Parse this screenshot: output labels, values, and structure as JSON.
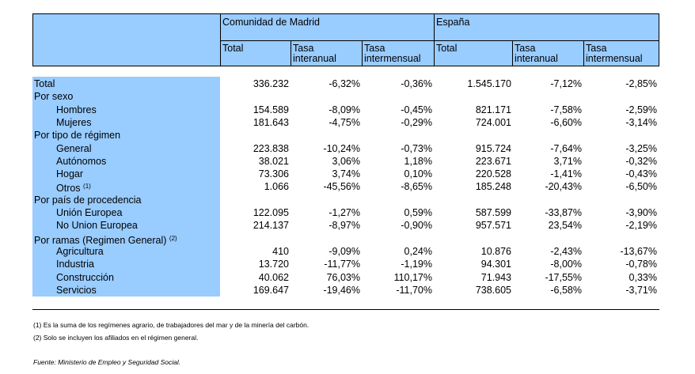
{
  "header": {
    "group1": "Comunidad de Madrid",
    "group2": "España",
    "cols": [
      {
        "line1": "Total",
        "line2": ""
      },
      {
        "line1": "Tasa",
        "line2": "interanual"
      },
      {
        "line1": "Tasa",
        "line2": "intermensual"
      },
      {
        "line1": "Total",
        "line2": ""
      },
      {
        "line1": "Tasa",
        "line2": "interanual"
      },
      {
        "line1": "Tasa",
        "line2": "intermensual"
      }
    ]
  },
  "rows": [
    {
      "label": "Total",
      "indent": false,
      "sup": "",
      "values": [
        "336.232",
        "-6,32%",
        "-0,36%",
        "1.545.170",
        "-7,12%",
        "-2,85%"
      ]
    },
    {
      "label": "Por sexo",
      "indent": false,
      "sup": "",
      "values": []
    },
    {
      "label": "Hombres",
      "indent": true,
      "sup": "",
      "values": [
        "154.589",
        "-8,09%",
        "-0,45%",
        "821.171",
        "-7,58%",
        "-2,59%"
      ]
    },
    {
      "label": "Mujeres",
      "indent": true,
      "sup": "",
      "values": [
        "181.643",
        "-4,75%",
        "-0,29%",
        "724.001",
        "-6,60%",
        "-3,14%"
      ]
    },
    {
      "label": "Por tipo de régimen",
      "indent": false,
      "sup": "",
      "values": []
    },
    {
      "label": "General",
      "indent": true,
      "sup": "",
      "values": [
        "223.838",
        "-10,24%",
        "-0,73%",
        "915.724",
        "-7,64%",
        "-3,25%"
      ]
    },
    {
      "label": "Autónomos",
      "indent": true,
      "sup": "",
      "values": [
        "38.021",
        "3,06%",
        "1,18%",
        "223.671",
        "3,71%",
        "-0,32%"
      ]
    },
    {
      "label": "Hogar",
      "indent": true,
      "sup": "",
      "values": [
        "73.306",
        "3,74%",
        "0,10%",
        "220.528",
        "-1,41%",
        "-0,43%"
      ]
    },
    {
      "label": "Otros",
      "indent": true,
      "sup": "(1)",
      "values": [
        "1.066",
        "-45,56%",
        "-8,65%",
        "185.248",
        "-20,43%",
        "-6,50%"
      ]
    },
    {
      "label": "Por país de procedencia",
      "indent": false,
      "sup": "",
      "values": []
    },
    {
      "label": "Unión Europea",
      "indent": true,
      "sup": "",
      "values": [
        "122.095",
        "-1,27%",
        "0,59%",
        "587.599",
        "-33,87%",
        "-3,90%"
      ]
    },
    {
      "label": "No Union Europea",
      "indent": true,
      "sup": "",
      "values": [
        "214.137",
        "-8,97%",
        "-0,90%",
        "957.571",
        "23,54%",
        "-2,19%"
      ]
    },
    {
      "label": "Por ramas (Regimen General)",
      "indent": false,
      "sup": "(2)",
      "values": []
    },
    {
      "label": "Agricultura",
      "indent": true,
      "sup": "",
      "values": [
        "410",
        "-9,09%",
        "0,24%",
        "10.876",
        "-2,43%",
        "-13,67%"
      ]
    },
    {
      "label": "Industria",
      "indent": true,
      "sup": "",
      "values": [
        "13.720",
        "-11,77%",
        "-1,19%",
        "94.301",
        "-8,00%",
        "-0,78%"
      ]
    },
    {
      "label": "Construcción",
      "indent": true,
      "sup": "",
      "values": [
        "40.062",
        "76,03%",
        "110,17%",
        "71.943",
        "-17,55%",
        "0,33%"
      ]
    },
    {
      "label": "Servicios",
      "indent": true,
      "sup": "",
      "values": [
        "169.647",
        "-19,46%",
        "-11,70%",
        "738.605",
        "-6,58%",
        "-3,71%"
      ]
    }
  ],
  "footnotes": [
    "(1) Es la suma de los regímenes  agrario, de trabajadores del mar y de la minería del carbón.",
    "(2) Solo se incluyen los afiliados en el régimen general."
  ],
  "source": "Fuente: Ministerio de Empleo y Seguridad Social.",
  "colors": {
    "header_fill": "#99ccff",
    "rule": "#000000"
  }
}
